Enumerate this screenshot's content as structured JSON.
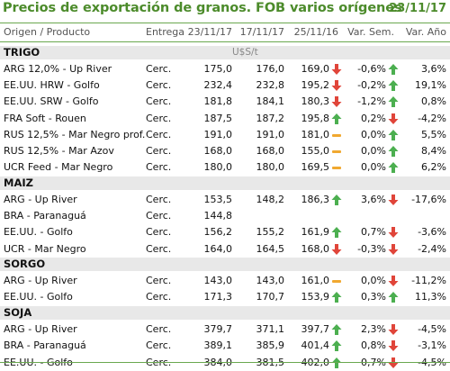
{
  "title": "Precios de exportación de granos. FOB varios orígenes",
  "date": "23/11/17",
  "columns": [
    "Origen / Producto",
    "Entrega",
    "23/11/17",
    "17/11/17",
    "25/11/16",
    "Var. Sem.",
    "Var. Año"
  ],
  "unit": "U$S/t",
  "colors": {
    "accent": "#4c8b2b",
    "up": "#4caf50",
    "down": "#e0453a",
    "flat": "#f0a830",
    "group_bg": "#e8e8e8"
  },
  "groups": [
    {
      "name": "TRIGO",
      "rows": [
        {
          "name": "ARG 12,0% - Up River",
          "entrega": "Cerc.",
          "v1": "175,0",
          "v2": "176,0",
          "v3": "169,0",
          "sem_icon": "down",
          "sem": "-0,6%",
          "ano_icon": "up",
          "ano": "3,6%"
        },
        {
          "name": "EE.UU. HRW - Golfo",
          "entrega": "Cerc.",
          "v1": "232,4",
          "v2": "232,8",
          "v3": "195,2",
          "sem_icon": "down",
          "sem": "-0,2%",
          "ano_icon": "up",
          "ano": "19,1%"
        },
        {
          "name": "EE.UU. SRW - Golfo",
          "entrega": "Cerc.",
          "v1": "181,8",
          "v2": "184,1",
          "v3": "180,3",
          "sem_icon": "down",
          "sem": "-1,2%",
          "ano_icon": "up",
          "ano": "0,8%"
        },
        {
          "name": "FRA Soft - Rouen",
          "entrega": "Cerc.",
          "v1": "187,5",
          "v2": "187,2",
          "v3": "195,8",
          "sem_icon": "up",
          "sem": "0,2%",
          "ano_icon": "down",
          "ano": "-4,2%"
        },
        {
          "name": "RUS 12,5% - Mar Negro prof.",
          "entrega": "Cerc.",
          "v1": "191,0",
          "v2": "191,0",
          "v3": "181,0",
          "sem_icon": "flat",
          "sem": "0,0%",
          "ano_icon": "up",
          "ano": "5,5%"
        },
        {
          "name": "RUS 12,5% - Mar Azov",
          "entrega": "Cerc.",
          "v1": "168,0",
          "v2": "168,0",
          "v3": "155,0",
          "sem_icon": "flat",
          "sem": "0,0%",
          "ano_icon": "up",
          "ano": "8,4%"
        },
        {
          "name": "UCR Feed - Mar Negro",
          "entrega": "Cerc.",
          "v1": "180,0",
          "v2": "180,0",
          "v3": "169,5",
          "sem_icon": "flat",
          "sem": "0,0%",
          "ano_icon": "up",
          "ano": "6,2%"
        }
      ]
    },
    {
      "name": "MAIZ",
      "rows": [
        {
          "name": "ARG - Up River",
          "entrega": "Cerc.",
          "v1": "153,5",
          "v2": "148,2",
          "v3": "186,3",
          "sem_icon": "up",
          "sem": "3,6%",
          "ano_icon": "down",
          "ano": "-17,6%"
        },
        {
          "name": "BRA - Paranaguá",
          "entrega": "Cerc.",
          "v1": "144,8",
          "v2": "",
          "v3": "",
          "sem_icon": "",
          "sem": "",
          "ano_icon": "",
          "ano": ""
        },
        {
          "name": "EE.UU. - Golfo",
          "entrega": "Cerc.",
          "v1": "156,2",
          "v2": "155,2",
          "v3": "161,9",
          "sem_icon": "up",
          "sem": "0,7%",
          "ano_icon": "down",
          "ano": "-3,6%"
        },
        {
          "name": "UCR - Mar Negro",
          "entrega": "Cerc.",
          "v1": "164,0",
          "v2": "164,5",
          "v3": "168,0",
          "sem_icon": "down",
          "sem": "-0,3%",
          "ano_icon": "down",
          "ano": "-2,4%"
        }
      ]
    },
    {
      "name": "SORGO",
      "rows": [
        {
          "name": "ARG - Up River",
          "entrega": "Cerc.",
          "v1": "143,0",
          "v2": "143,0",
          "v3": "161,0",
          "sem_icon": "flat",
          "sem": "0,0%",
          "ano_icon": "down",
          "ano": "-11,2%"
        },
        {
          "name": "EE.UU. - Golfo",
          "entrega": "Cerc.",
          "v1": "171,3",
          "v2": "170,7",
          "v3": "153,9",
          "sem_icon": "up",
          "sem": "0,3%",
          "ano_icon": "up",
          "ano": "11,3%"
        }
      ]
    },
    {
      "name": "SOJA",
      "rows": [
        {
          "name": "ARG - Up River",
          "entrega": "Cerc.",
          "v1": "379,7",
          "v2": "371,1",
          "v3": "397,7",
          "sem_icon": "up",
          "sem": "2,3%",
          "ano_icon": "down",
          "ano": "-4,5%"
        },
        {
          "name": "BRA - Paranaguá",
          "entrega": "Cerc.",
          "v1": "389,1",
          "v2": "385,9",
          "v3": "401,4",
          "sem_icon": "up",
          "sem": "0,8%",
          "ano_icon": "down",
          "ano": "-3,1%"
        },
        {
          "name": "EE.UU. - Golfo",
          "entrega": "Cerc.",
          "v1": "384,0",
          "v2": "381,5",
          "v3": "402,0",
          "sem_icon": "up",
          "sem": "0,7%",
          "ano_icon": "down",
          "ano": "-4,5%"
        }
      ]
    }
  ]
}
